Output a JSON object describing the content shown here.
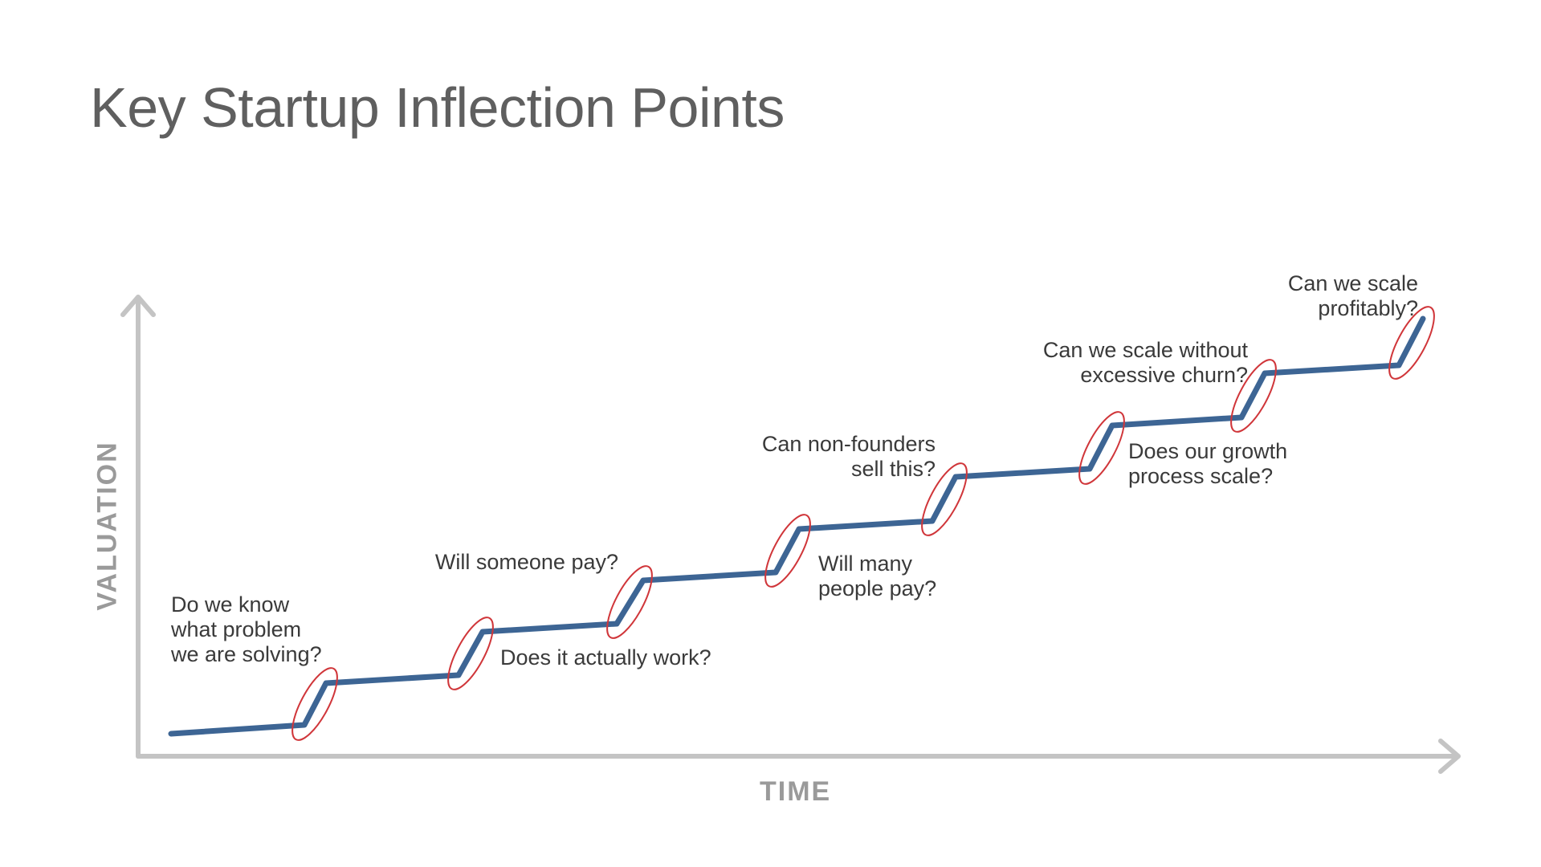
{
  "title": "Key Startup Inflection Points",
  "axes": {
    "x_label": "TIME",
    "y_label": "VALUATION"
  },
  "colors": {
    "line": "#3d6594",
    "highlight": "#d0363a",
    "axis": "#c4c4c4",
    "text": "#3a3a3a",
    "title": "#5f5f5f"
  },
  "inflection_points": [
    {
      "label": "Do we know\nwhat problem\nwe are solving?"
    },
    {
      "label": "Does it actually work?"
    },
    {
      "label": "Will someone pay?"
    },
    {
      "label": "Will many\npeople pay?"
    },
    {
      "label": "Can non-founders\nsell this?"
    },
    {
      "label": "Does our growth\nprocess scale?"
    },
    {
      "label": "Can we scale without\nexcessive churn?"
    },
    {
      "label": "Can we scale\nprofitably?"
    }
  ]
}
